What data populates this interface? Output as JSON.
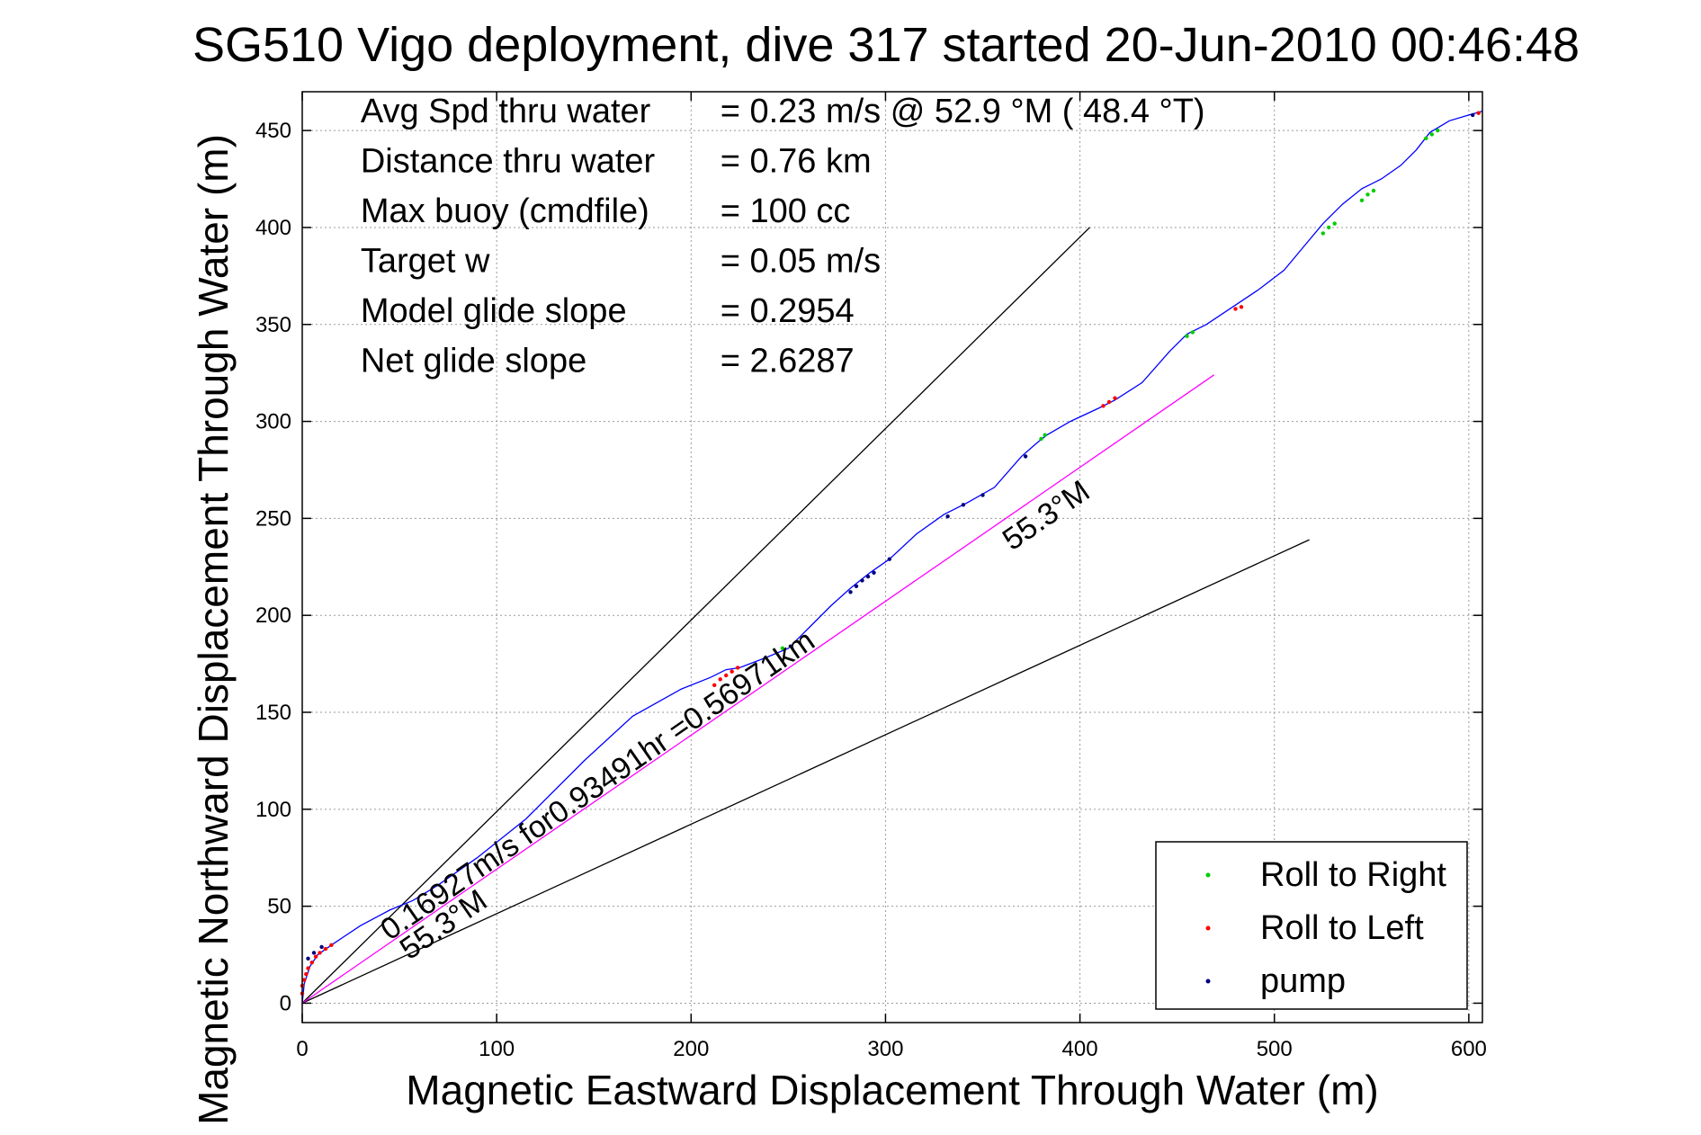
{
  "chart_data": {
    "type": "line",
    "title": "SG510 Vigo deployment, dive 317 started 20-Jun-2010 00:46:48",
    "xlabel": "Magnetic Eastward Displacement Through Water (m)",
    "ylabel": "Magnetic Northward Displacement Through Water (m)",
    "xlim": [
      0,
      607
    ],
    "ylim": [
      -10,
      470
    ],
    "xticks": [
      0,
      100,
      200,
      300,
      400,
      500,
      600
    ],
    "yticks": [
      0,
      50,
      100,
      150,
      200,
      250,
      300,
      350,
      400,
      450
    ],
    "grid": true,
    "info": [
      {
        "label": "Avg Spd thru water",
        "value": "=  0.23 m/s @  52.9 °M ( 48.4 °T)"
      },
      {
        "label": "Distance thru water",
        "value": "=  0.76 km"
      },
      {
        "label": "Max buoy (cmdfile)",
        "value": "= 100 cc"
      },
      {
        "label": "Target w",
        "value": "= 0.05 m/s"
      },
      {
        "label": "Model glide slope",
        "value": "= 0.2954"
      },
      {
        "label": "Net glide slope",
        "value": "= 2.6287"
      }
    ],
    "series": [
      {
        "color": "#0000ff",
        "x": [
          0,
          1,
          4,
          8,
          15,
          30,
          45,
          57,
          70,
          90,
          115,
          145,
          170,
          195,
          210,
          218,
          225,
          238,
          250,
          262,
          272,
          282,
          292,
          302,
          316,
          330,
          342,
          356,
          370,
          378,
          383,
          395,
          410,
          418,
          432,
          446,
          455,
          465,
          480,
          492,
          505,
          515,
          525,
          535,
          545,
          555,
          565,
          573,
          580,
          590,
          600,
          607
        ],
        "y": [
          0,
          10,
          19,
          25,
          30,
          40,
          48,
          53,
          61,
          75,
          95,
          125,
          148,
          162,
          168,
          172,
          173,
          178,
          183,
          195,
          205,
          214,
          222,
          229,
          242,
          252,
          258,
          266,
          282,
          289,
          293,
          300,
          307,
          311,
          320,
          336,
          345,
          350,
          360,
          368,
          378,
          390,
          402,
          412,
          420,
          425,
          432,
          440,
          449,
          455,
          458,
          460
        ]
      },
      {
        "color": "#ff00ff",
        "x": [
          0,
          469
        ],
        "y": [
          0,
          324
        ]
      },
      {
        "color": "#000000",
        "x": [
          0,
          405
        ],
        "y": [
          0,
          400
        ]
      },
      {
        "color": "#000000",
        "x": [
          0,
          518
        ],
        "y": [
          0,
          239
        ]
      }
    ],
    "markers": {
      "roll_right": {
        "color": "#00cc00",
        "x": [
          247,
          380,
          382,
          455,
          458,
          525,
          528,
          531,
          545,
          548,
          551,
          578,
          581,
          584
        ],
        "y": [
          183,
          291,
          293,
          344,
          346,
          397,
          400,
          402,
          414,
          417,
          419,
          446,
          448,
          450
        ]
      },
      "roll_left": {
        "color": "#ff0000",
        "x": [
          0,
          0,
          1,
          2,
          3,
          5,
          7,
          9,
          12,
          15,
          212,
          215,
          218,
          221,
          224,
          412,
          415,
          418,
          480,
          483,
          605
        ],
        "y": [
          5,
          9,
          12,
          15,
          18,
          21,
          24,
          26,
          28,
          30,
          164,
          167,
          169,
          171,
          173,
          308,
          310,
          312,
          358,
          359,
          459
        ]
      },
      "pump": {
        "color": "#000080",
        "x": [
          3,
          6,
          10,
          282,
          285,
          288,
          291,
          294,
          302,
          332,
          340,
          350,
          372,
          602
        ],
        "y": [
          23,
          26,
          29,
          212,
          215,
          218,
          220,
          222,
          229,
          251,
          257,
          262,
          282,
          458
        ]
      }
    },
    "annotations": [
      {
        "text": "0.16927m/s for0.93491hr =0.56971km",
        "x": 45,
        "y": 32,
        "angle": 34.7
      },
      {
        "text": "55.3°M",
        "x": 55,
        "y": 22,
        "angle": 34.7
      },
      {
        "text": "55.3°M",
        "x": 365,
        "y": 233,
        "angle": 34.7
      }
    ],
    "legend": {
      "position": "bottom-right",
      "entries": [
        {
          "label": "Roll to Right",
          "color": "#00cc00"
        },
        {
          "label": "Roll to Left",
          "color": "#ff0000"
        },
        {
          "label": "pump",
          "color": "#000080"
        }
      ]
    }
  }
}
